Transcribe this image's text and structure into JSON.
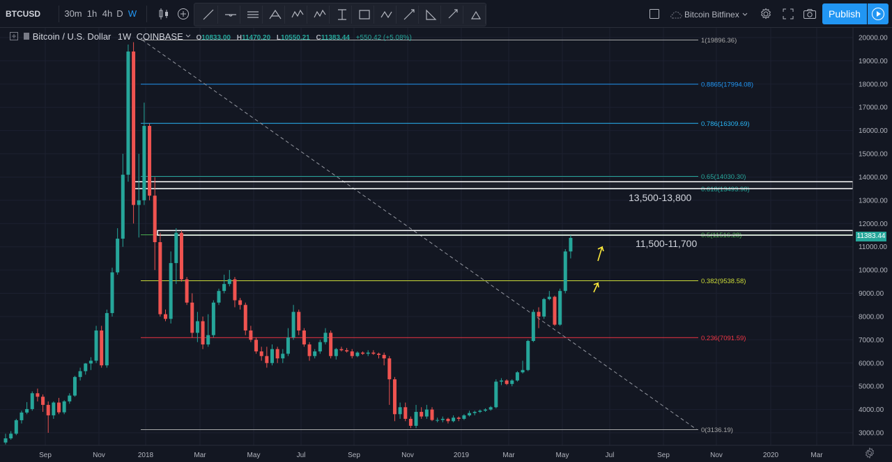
{
  "toolbar": {
    "symbol": "BTCUSD",
    "intervals": [
      "30m",
      "1h",
      "4h",
      "D",
      "W"
    ],
    "active_interval": "W",
    "exchange": "Bitcoin Bitfinex",
    "publish_label": "Publish",
    "drawing_tools": [
      "trend-line",
      "horizontal-ray",
      "parallel-channel",
      "pitchfork",
      "xabcd-pattern",
      "abcde-pattern",
      "fib-retracement",
      "rectangle",
      "abcd-pattern",
      "brush",
      "triangle",
      "arrow",
      "eraser"
    ]
  },
  "legend": {
    "title": "Bitcoin / U.S. Dollar",
    "interval": "1W",
    "exchange": "COINBASE",
    "open_label": "O",
    "open": "10833.00",
    "high_label": "H",
    "high": "11470.20",
    "low_label": "L",
    "low": "10550.21",
    "close_label": "C",
    "close": "11383.44",
    "change": "+550.42 (+5.08%)"
  },
  "last_price": "11383.44",
  "annotations": {
    "zone1": "13,500-13,800",
    "zone2": "11,500-11,700"
  },
  "colors": {
    "bull": "#26a69a",
    "bear": "#ef5350",
    "background": "#131722",
    "accent": "#2196f3"
  },
  "chart_data": {
    "type": "candlestick",
    "symbol": "Bitcoin / U.S. Dollar",
    "interval": "1W",
    "ylim": [
      2800,
      20300
    ],
    "y_ticks": [
      3000,
      4000,
      5000,
      6000,
      7000,
      8000,
      9000,
      10000,
      11000,
      12000,
      13000,
      14000,
      15000,
      16000,
      17000,
      18000,
      19000,
      20000
    ],
    "x_ticks": [
      "Sep",
      "Nov",
      "2018",
      "Mar",
      "May",
      "Jul",
      "Sep",
      "Nov",
      "2019",
      "Mar",
      "May",
      "Jul",
      "Sep",
      "Nov",
      "2020",
      "Mar"
    ],
    "fib_levels": [
      {
        "label": "1(19896.36)",
        "value": 19896.36,
        "color": "#a8a8a8"
      },
      {
        "label": "0.8865(17994.08)",
        "value": 17994.08,
        "color": "#2196f3"
      },
      {
        "label": "0.786(16309.69)",
        "value": 16309.69,
        "color": "#29b6f6"
      },
      {
        "label": "0.65(14030.30)",
        "value": 14030.3,
        "color": "#26a69a"
      },
      {
        "label": "0.618(13493.98)",
        "value": 13493.98,
        "color": "#26a69a"
      },
      {
        "label": "0.5(11516.28)",
        "value": 11516.28,
        "color": "#4caf50"
      },
      {
        "label": "0.382(9538.58)",
        "value": 9538.58,
        "color": "#cddc39"
      },
      {
        "label": "0.236(7091.59)",
        "value": 7091.59,
        "color": "#f23645"
      },
      {
        "label": "0(3136.19)",
        "value": 3136.19,
        "color": "#a8a8a8"
      }
    ],
    "zones": [
      {
        "label": "13,500-13,800",
        "low": 13500,
        "high": 13800
      },
      {
        "label": "11,500-11,700",
        "low": 11500,
        "high": 11700
      }
    ],
    "candles": [
      [
        2580,
        2960,
        2500,
        2760
      ],
      [
        2760,
        3070,
        2700,
        2960
      ],
      [
        2960,
        3600,
        2900,
        3540
      ],
      [
        3540,
        3950,
        3400,
        3870
      ],
      [
        3870,
        4320,
        3800,
        4020
      ],
      [
        4020,
        4780,
        3950,
        4700
      ],
      [
        4700,
        4900,
        4350,
        4550
      ],
      [
        4550,
        4650,
        3900,
        4200
      ],
      [
        4200,
        4350,
        3000,
        3750
      ],
      [
        3750,
        4350,
        3600,
        4300
      ],
      [
        4300,
        4500,
        3800,
        3880
      ],
      [
        3880,
        4400,
        3800,
        4350
      ],
      [
        4350,
        4700,
        4250,
        4600
      ],
      [
        4600,
        5450,
        4550,
        5400
      ],
      [
        5400,
        5800,
        5250,
        5650
      ],
      [
        5650,
        6000,
        5500,
        5980
      ],
      [
        5980,
        6250,
        5700,
        6100
      ],
      [
        6100,
        7600,
        6000,
        7400
      ],
      [
        7400,
        7600,
        5800,
        5900
      ],
      [
        5900,
        8300,
        5800,
        8150
      ],
      [
        8150,
        10100,
        8000,
        9900
      ],
      [
        9900,
        11800,
        9800,
        11350
      ],
      [
        11350,
        15000,
        11000,
        14100
      ],
      [
        14100,
        19700,
        13800,
        19400
      ],
      [
        19400,
        19800,
        12000,
        12800
      ],
      [
        12800,
        15000,
        11400,
        13000
      ],
      [
        13000,
        17200,
        12800,
        16200
      ],
      [
        16200,
        16300,
        13000,
        13200
      ],
      [
        13200,
        14000,
        10000,
        11200
      ],
      [
        11200,
        11600,
        8000,
        8100
      ],
      [
        8100,
        8300,
        7800,
        7900
      ],
      [
        7900,
        10800,
        7700,
        10300
      ],
      [
        10300,
        11800,
        9400,
        11600
      ],
      [
        11600,
        11700,
        9500,
        9600
      ],
      [
        9600,
        9700,
        8500,
        8600
      ],
      [
        8600,
        9000,
        7100,
        7300
      ],
      [
        7300,
        8200,
        6900,
        7800
      ],
      [
        7800,
        8000,
        6600,
        6800
      ],
      [
        6800,
        8100,
        6700,
        7200
      ],
      [
        7200,
        8700,
        7100,
        8600
      ],
      [
        8600,
        9200,
        8500,
        9100
      ],
      [
        9100,
        9800,
        9000,
        9400
      ],
      [
        9400,
        10000,
        9300,
        9600
      ],
      [
        9600,
        9700,
        8400,
        8700
      ],
      [
        8700,
        8800,
        8300,
        8500
      ],
      [
        8500,
        8600,
        7200,
        7400
      ],
      [
        7400,
        7600,
        6900,
        7000
      ],
      [
        7000,
        7100,
        6400,
        6500
      ],
      [
        6500,
        6700,
        6100,
        6300
      ],
      [
        6300,
        6700,
        5800,
        6000
      ],
      [
        6000,
        6800,
        5900,
        6600
      ],
      [
        6600,
        6700,
        6000,
        6200
      ],
      [
        6200,
        6600,
        6000,
        6400
      ],
      [
        6400,
        7500,
        6300,
        7100
      ],
      [
        7100,
        8500,
        7000,
        8200
      ],
      [
        8200,
        8300,
        7200,
        7400
      ],
      [
        7400,
        7500,
        6700,
        6800
      ],
      [
        6800,
        6900,
        6100,
        6300
      ],
      [
        6300,
        6600,
        6200,
        6500
      ],
      [
        6500,
        7000,
        6400,
        6900
      ],
      [
        6900,
        7500,
        6800,
        7300
      ],
      [
        7300,
        7400,
        6200,
        6300
      ],
      [
        6300,
        6650,
        6150,
        6600
      ],
      [
        6600,
        6700,
        6500,
        6550
      ],
      [
        6550,
        6650,
        6450,
        6500
      ],
      [
        6500,
        6600,
        6200,
        6300
      ],
      [
        6300,
        6500,
        6250,
        6450
      ],
      [
        6450,
        6500,
        6350,
        6400
      ],
      [
        6400,
        6550,
        6300,
        6450
      ],
      [
        6450,
        6550,
        6350,
        6400
      ],
      [
        6400,
        6450,
        6200,
        6350
      ],
      [
        6350,
        6450,
        5900,
        6200
      ],
      [
        6200,
        6300,
        4200,
        5300
      ],
      [
        5300,
        5400,
        3500,
        3800
      ],
      [
        3800,
        4300,
        3600,
        4100
      ],
      [
        4100,
        4300,
        3500,
        3600
      ],
      [
        3600,
        3700,
        3200,
        3300
      ],
      [
        3300,
        4200,
        3200,
        3900
      ],
      [
        3900,
        4100,
        3600,
        3700
      ],
      [
        3700,
        4200,
        3600,
        4000
      ],
      [
        4000,
        4100,
        3500,
        3550
      ],
      [
        3550,
        3650,
        3450,
        3550
      ],
      [
        3550,
        3700,
        3450,
        3600
      ],
      [
        3600,
        3650,
        3400,
        3500
      ],
      [
        3500,
        3750,
        3450,
        3650
      ],
      [
        3650,
        3700,
        3500,
        3600
      ],
      [
        3600,
        3800,
        3550,
        3750
      ],
      [
        3750,
        3950,
        3700,
        3850
      ],
      [
        3850,
        3950,
        3750,
        3900
      ],
      [
        3900,
        4000,
        3850,
        3950
      ],
      [
        3950,
        4050,
        3900,
        4000
      ],
      [
        4000,
        4150,
        3950,
        4100
      ],
      [
        4100,
        5300,
        4050,
        5200
      ],
      [
        5200,
        5350,
        5050,
        5250
      ],
      [
        5250,
        5300,
        5050,
        5100
      ],
      [
        5100,
        5300,
        5000,
        5250
      ],
      [
        5250,
        5650,
        5200,
        5600
      ],
      [
        5600,
        6100,
        5550,
        5700
      ],
      [
        5700,
        7000,
        5650,
        6950
      ],
      [
        6950,
        8300,
        6900,
        8200
      ],
      [
        8200,
        8400,
        7500,
        8000
      ],
      [
        8000,
        8800,
        7900,
        8750
      ],
      [
        8750,
        9100,
        8700,
        8850
      ],
      [
        8850,
        8900,
        7600,
        7650
      ],
      [
        7650,
        9200,
        7600,
        9100
      ],
      [
        9100,
        10900,
        9000,
        10800
      ],
      [
        10800,
        11500,
        10500,
        11383
      ]
    ]
  }
}
